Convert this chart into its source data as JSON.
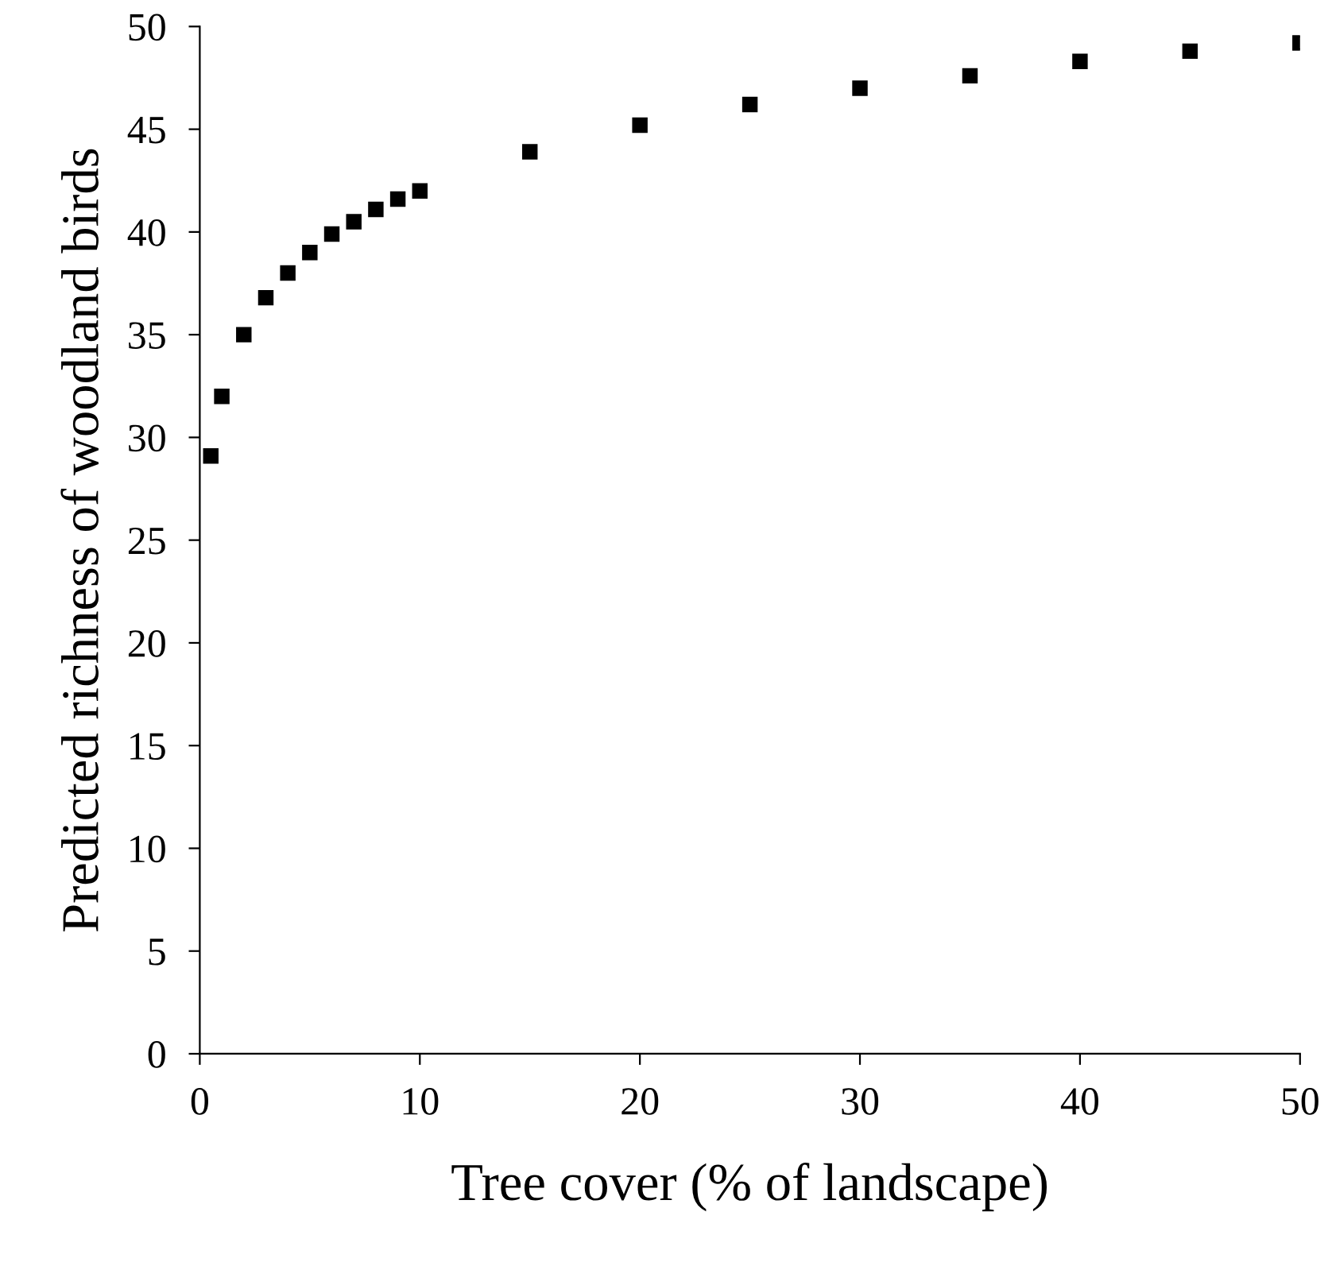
{
  "chart_data": {
    "type": "scatter",
    "xlabel": "Tree cover (% of landscape)",
    "ylabel": "Predicted richness of woodland birds",
    "x": [
      0.5,
      1,
      2,
      3,
      4,
      5,
      6,
      7,
      8,
      9,
      10,
      15,
      20,
      25,
      30,
      35,
      40,
      45,
      50
    ],
    "values": [
      29.1,
      32.0,
      35.0,
      36.8,
      38.0,
      39.0,
      39.9,
      40.5,
      41.1,
      41.6,
      42.0,
      43.9,
      45.2,
      46.2,
      47.0,
      47.6,
      48.3,
      48.8,
      49.2
    ],
    "color": "#000000",
    "marker": "square",
    "xlim": [
      0,
      50
    ],
    "xticks": [
      0,
      10,
      20,
      30,
      40,
      50
    ],
    "ylim": [
      0,
      50
    ],
    "yticks": [
      0,
      5,
      10,
      15,
      20,
      25,
      30,
      35,
      40,
      45,
      50
    ],
    "grid": false,
    "legend": false
  }
}
